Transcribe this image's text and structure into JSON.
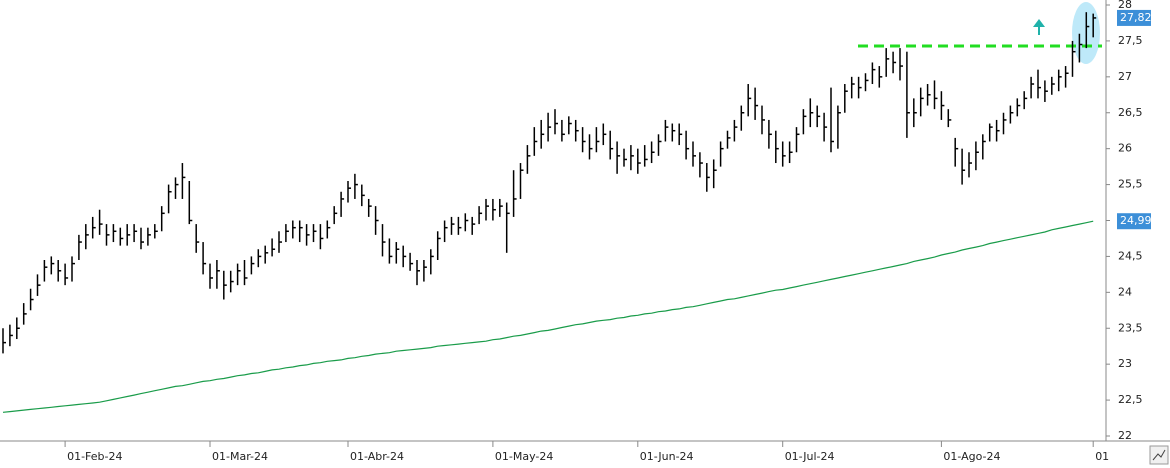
{
  "chart_data": {
    "type": "ohlc",
    "categories": [
      null,
      null,
      null,
      null,
      null,
      null,
      null,
      null,
      null,
      "01-Feb-24",
      null,
      null,
      null,
      null,
      null,
      null,
      null,
      null,
      null,
      null,
      null,
      null,
      null,
      null,
      null,
      null,
      null,
      null,
      null,
      null,
      "01-Mar-24",
      null,
      null,
      null,
      null,
      null,
      null,
      null,
      null,
      null,
      null,
      null,
      null,
      null,
      null,
      null,
      null,
      null,
      null,
      null,
      "01-Abr-24",
      null,
      null,
      null,
      null,
      null,
      null,
      null,
      null,
      null,
      null,
      null,
      null,
      null,
      null,
      null,
      null,
      null,
      null,
      null,
      null,
      "01-May-24",
      null,
      null,
      null,
      null,
      null,
      null,
      null,
      null,
      null,
      null,
      null,
      null,
      null,
      null,
      null,
      null,
      null,
      null,
      null,
      null,
      "01-Jun-24",
      null,
      null,
      null,
      null,
      null,
      null,
      null,
      null,
      null,
      null,
      null,
      null,
      null,
      null,
      null,
      null,
      null,
      null,
      null,
      null,
      "01-Jul-24",
      null,
      null,
      null,
      null,
      null,
      null,
      null,
      null,
      null,
      null,
      null,
      null,
      null,
      null,
      null,
      null,
      null,
      null,
      null,
      null,
      null,
      null,
      "01-Ago-24",
      null,
      null,
      null,
      null,
      null,
      null,
      null,
      null,
      null,
      null,
      null,
      null,
      null,
      null,
      null,
      null,
      null,
      null,
      null,
      null,
      null,
      "01"
    ],
    "high": [
      23.5,
      23.55,
      23.65,
      23.85,
      24.05,
      24.25,
      24.45,
      24.5,
      24.45,
      24.4,
      24.5,
      24.8,
      24.95,
      25.05,
      25.15,
      24.95,
      24.95,
      24.9,
      24.95,
      24.95,
      24.9,
      24.9,
      24.95,
      25.2,
      25.5,
      25.6,
      25.8,
      25.55,
      24.95,
      24.7,
      24.4,
      24.45,
      24.3,
      24.3,
      24.4,
      24.45,
      24.5,
      24.6,
      24.65,
      24.75,
      24.85,
      24.95,
      25.0,
      25.0,
      24.95,
      24.95,
      24.95,
      25.0,
      25.2,
      25.4,
      25.55,
      25.65,
      25.5,
      25.3,
      25.2,
      24.95,
      24.75,
      24.7,
      24.65,
      24.55,
      24.45,
      24.45,
      24.6,
      24.85,
      25.0,
      25.05,
      25.05,
      25.1,
      25.05,
      25.2,
      25.3,
      25.3,
      25.3,
      25.25,
      25.7,
      25.8,
      26.05,
      26.3,
      26.4,
      26.5,
      26.55,
      26.4,
      26.45,
      26.4,
      26.3,
      26.2,
      26.3,
      26.35,
      26.25,
      26.1,
      26.0,
      26.05,
      26.0,
      26.05,
      26.1,
      26.2,
      26.4,
      26.35,
      26.35,
      26.25,
      26.1,
      25.95,
      25.8,
      25.85,
      26.1,
      26.25,
      26.4,
      26.6,
      26.9,
      26.85,
      26.6,
      26.4,
      26.25,
      26.1,
      26.1,
      26.3,
      26.55,
      26.7,
      26.6,
      26.5,
      26.85,
      26.6,
      26.9,
      27.0,
      27.0,
      27.05,
      27.2,
      27.15,
      27.4,
      27.35,
      27.4,
      27.35,
      26.7,
      26.85,
      26.9,
      26.95,
      26.8,
      26.55,
      26.15,
      26.0,
      25.95,
      26.1,
      26.2,
      26.35,
      26.4,
      26.5,
      26.6,
      26.7,
      26.8,
      27.0,
      27.1,
      26.95,
      27.0,
      27.1,
      27.15,
      27.5,
      27.6,
      27.9,
      27.88
    ],
    "low": [
      23.15,
      23.25,
      23.35,
      23.55,
      23.75,
      23.95,
      24.15,
      24.25,
      24.15,
      24.1,
      24.15,
      24.45,
      24.6,
      24.75,
      24.8,
      24.65,
      24.7,
      24.65,
      24.65,
      24.7,
      24.6,
      24.65,
      24.75,
      24.85,
      25.1,
      25.3,
      25.3,
      24.95,
      24.55,
      24.25,
      24.05,
      24.05,
      23.9,
      24.0,
      24.1,
      24.1,
      24.25,
      24.35,
      24.4,
      24.5,
      24.55,
      24.7,
      24.75,
      24.7,
      24.65,
      24.7,
      24.6,
      24.75,
      24.95,
      25.05,
      25.25,
      25.3,
      25.2,
      25.05,
      24.8,
      24.5,
      24.4,
      24.4,
      24.35,
      24.3,
      24.1,
      24.15,
      24.25,
      24.45,
      24.7,
      24.8,
      24.8,
      24.85,
      24.8,
      24.95,
      25.0,
      25.0,
      25.05,
      24.55,
      25.05,
      25.3,
      25.65,
      25.9,
      26.0,
      26.1,
      26.2,
      26.1,
      26.2,
      26.1,
      25.95,
      25.85,
      25.95,
      26.05,
      25.85,
      25.65,
      25.75,
      25.7,
      25.65,
      25.75,
      25.8,
      25.9,
      26.1,
      26.1,
      26.05,
      25.85,
      25.75,
      25.6,
      25.4,
      25.45,
      25.75,
      26.0,
      26.1,
      26.25,
      26.45,
      26.4,
      26.2,
      26.0,
      25.8,
      25.75,
      25.8,
      25.95,
      26.2,
      26.3,
      26.3,
      26.1,
      25.95,
      26.0,
      26.5,
      26.7,
      26.7,
      26.8,
      26.9,
      26.85,
      27.0,
      27.05,
      26.95,
      26.15,
      26.3,
      26.45,
      26.6,
      26.55,
      26.4,
      26.3,
      25.75,
      25.5,
      25.6,
      25.7,
      25.85,
      26.1,
      26.1,
      26.2,
      26.35,
      26.45,
      26.55,
      26.7,
      26.7,
      26.65,
      26.75,
      26.8,
      26.85,
      27.0,
      27.2,
      27.4,
      27.55
    ],
    "close": [
      23.3,
      23.4,
      23.5,
      23.7,
      23.9,
      24.1,
      24.35,
      24.4,
      24.3,
      24.2,
      24.4,
      24.7,
      24.8,
      24.9,
      24.95,
      24.8,
      24.85,
      24.75,
      24.8,
      24.85,
      24.7,
      24.8,
      24.85,
      25.1,
      25.4,
      25.5,
      25.6,
      25.0,
      24.7,
      24.4,
      24.2,
      24.3,
      24.1,
      24.15,
      24.3,
      24.2,
      24.4,
      24.5,
      24.55,
      24.6,
      24.7,
      24.85,
      24.9,
      24.9,
      24.8,
      24.85,
      24.75,
      24.9,
      25.1,
      25.3,
      25.45,
      25.5,
      25.35,
      25.2,
      25.0,
      24.7,
      24.5,
      24.6,
      24.5,
      24.4,
      24.3,
      24.35,
      24.5,
      24.75,
      24.9,
      24.95,
      24.9,
      25.0,
      24.95,
      25.1,
      25.2,
      25.15,
      25.2,
      25.1,
      25.3,
      25.7,
      25.9,
      26.1,
      26.2,
      26.3,
      26.35,
      26.2,
      26.35,
      26.25,
      26.1,
      26.0,
      26.1,
      26.2,
      26.0,
      25.9,
      25.85,
      25.9,
      25.8,
      25.85,
      25.95,
      26.1,
      26.3,
      26.25,
      26.2,
      26.0,
      25.9,
      25.8,
      25.6,
      25.7,
      26.0,
      26.15,
      26.3,
      26.5,
      26.7,
      26.6,
      26.4,
      26.2,
      26.0,
      25.9,
      25.95,
      26.2,
      26.45,
      26.5,
      26.45,
      26.3,
      26.1,
      26.5,
      26.8,
      26.9,
      26.85,
      26.95,
      27.1,
      27.0,
      27.25,
      27.2,
      27.15,
      26.5,
      26.5,
      26.7,
      26.75,
      26.7,
      26.6,
      26.4,
      26.0,
      25.7,
      25.8,
      25.95,
      26.1,
      26.3,
      26.25,
      26.4,
      26.5,
      26.6,
      26.7,
      26.9,
      26.85,
      26.8,
      26.9,
      27.0,
      27.05,
      27.35,
      27.45,
      27.7,
      27.82
    ],
    "last_label": "27,82",
    "bar_color": "#000000",
    "ma": {
      "color": "#1a9c4a",
      "last_label": "24,99",
      "values": [
        22.33,
        22.34,
        22.35,
        22.36,
        22.37,
        22.38,
        22.39,
        22.4,
        22.41,
        22.42,
        22.43,
        22.44,
        22.45,
        22.46,
        22.47,
        22.49,
        22.51,
        22.53,
        22.55,
        22.57,
        22.59,
        22.61,
        22.63,
        22.65,
        22.67,
        22.69,
        22.7,
        22.72,
        22.74,
        22.76,
        22.77,
        22.79,
        22.8,
        22.82,
        22.84,
        22.85,
        22.87,
        22.88,
        22.9,
        22.92,
        22.93,
        22.95,
        22.96,
        22.98,
        22.99,
        23.01,
        23.02,
        23.04,
        23.05,
        23.06,
        23.08,
        23.09,
        23.11,
        23.12,
        23.14,
        23.15,
        23.16,
        23.18,
        23.19,
        23.2,
        23.21,
        23.22,
        23.23,
        23.25,
        23.26,
        23.27,
        23.28,
        23.29,
        23.3,
        23.31,
        23.32,
        23.34,
        23.35,
        23.37,
        23.39,
        23.4,
        23.42,
        23.44,
        23.46,
        23.47,
        23.49,
        23.51,
        23.53,
        23.55,
        23.56,
        23.58,
        23.6,
        23.61,
        23.62,
        23.64,
        23.65,
        23.67,
        23.68,
        23.7,
        23.71,
        23.73,
        23.74,
        23.76,
        23.77,
        23.79,
        23.8,
        23.82,
        23.84,
        23.86,
        23.88,
        23.9,
        23.91,
        23.93,
        23.95,
        23.97,
        23.99,
        24.01,
        24.03,
        24.04,
        24.06,
        24.08,
        24.1,
        24.12,
        24.14,
        24.16,
        24.18,
        24.2,
        24.22,
        24.24,
        24.26,
        24.28,
        24.3,
        24.32,
        24.34,
        24.36,
        24.38,
        24.4,
        24.43,
        24.45,
        24.47,
        24.49,
        24.52,
        24.54,
        24.56,
        24.59,
        24.61,
        24.63,
        24.65,
        24.68,
        24.7,
        24.72,
        24.74,
        24.76,
        24.78,
        24.8,
        24.82,
        24.84,
        24.87,
        24.89,
        24.91,
        24.93,
        24.95,
        24.97,
        24.99
      ]
    },
    "level": {
      "value": 27.43,
      "color": "#22dd22"
    },
    "label_color": "#3c8fd8",
    "ylim": [
      22,
      28
    ],
    "yticks": [
      22,
      {
        "value": 22.5,
        "label": "22,5"
      },
      23,
      {
        "value": 23.5,
        "label": "23,5"
      },
      24,
      {
        "value": 24.5,
        "label": "24,5"
      },
      25,
      {
        "value": 25.5,
        "label": "25,5"
      },
      26,
      {
        "value": 26.5,
        "label": "26,5"
      },
      27,
      {
        "value": 27.5,
        "label": "27,5"
      },
      28
    ]
  }
}
